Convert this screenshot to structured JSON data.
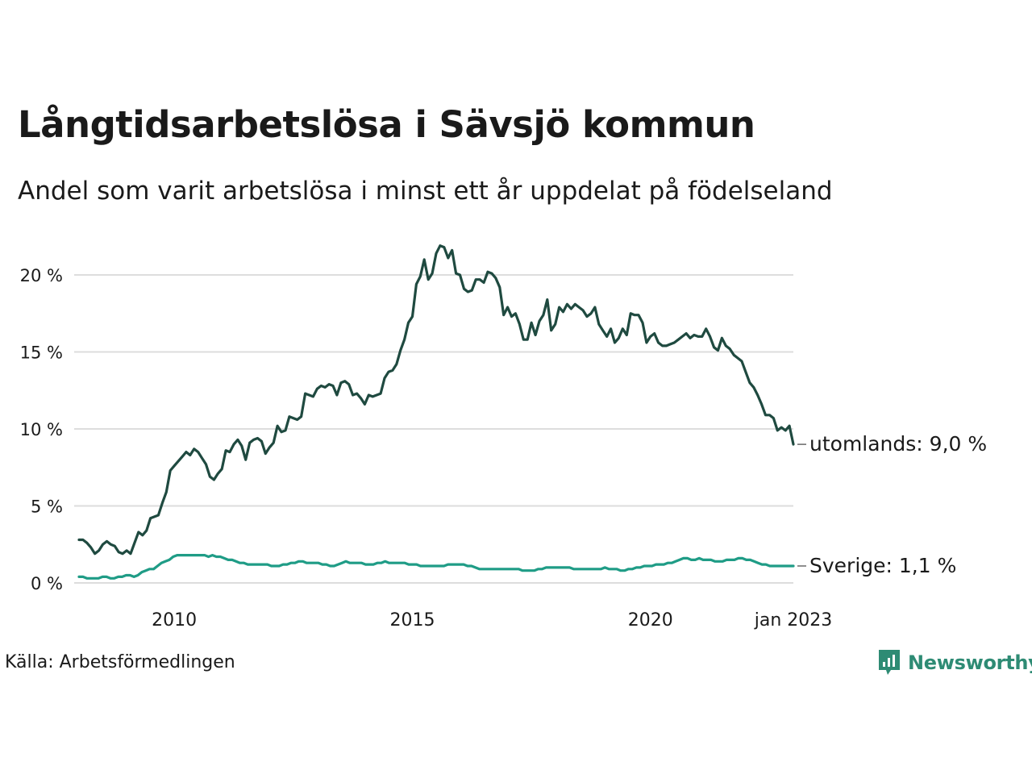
{
  "header": {
    "title": "Långtidsarbetslösa i Sävsjö kommun",
    "subtitle": "Andel som varit arbetslösa i minst ett år uppdelat på födelseland"
  },
  "footer": {
    "source": "Källa: Arbetsförmedlingen",
    "brand": "Newsworthy"
  },
  "colors": {
    "utomlands": "#1f4a40",
    "sverige": "#1f9c86",
    "grid": "#dddddd",
    "brand": "#2e8b74"
  },
  "chart_data": {
    "type": "line",
    "title": "Långtidsarbetslösa i Sävsjö kommun",
    "subtitle": "Andel som varit arbetslösa i minst ett år uppdelat på födelseland",
    "x_start": "2008-01",
    "x_end": "2023-01",
    "x_ticks": [
      "2010",
      "2015",
      "2020",
      "jan 2023"
    ],
    "x_tick_dates": [
      "2010-01",
      "2015-01",
      "2020-01",
      "2023-01"
    ],
    "y_ticks": [
      "0 %",
      "5 %",
      "10 %",
      "15 %",
      "20 %"
    ],
    "y_tick_values": [
      0,
      5,
      10,
      15,
      20
    ],
    "ylim": [
      0,
      20
    ],
    "grid": true,
    "series": [
      {
        "name": "utomlands",
        "end_label": "utomlands: 9,0 %",
        "values": [
          2.8,
          2.8,
          2.6,
          2.3,
          1.9,
          2.1,
          2.5,
          2.7,
          2.5,
          2.4,
          2.0,
          1.9,
          2.1,
          1.9,
          2.6,
          3.3,
          3.1,
          3.4,
          4.2,
          4.3,
          4.4,
          5.2,
          5.9,
          7.3,
          7.6,
          7.9,
          8.2,
          8.5,
          8.3,
          8.7,
          8.5,
          8.1,
          7.7,
          6.9,
          6.7,
          7.1,
          7.4,
          8.6,
          8.5,
          9.0,
          9.3,
          8.9,
          8.0,
          9.1,
          9.3,
          9.4,
          9.2,
          8.4,
          8.8,
          9.1,
          10.2,
          9.8,
          9.9,
          10.8,
          10.7,
          10.6,
          10.8,
          12.3,
          12.2,
          12.1,
          12.6,
          12.8,
          12.7,
          12.9,
          12.8,
          12.2,
          13.0,
          13.1,
          12.9,
          12.2,
          12.3,
          12.0,
          11.6,
          12.2,
          12.1,
          12.2,
          12.3,
          13.3,
          13.7,
          13.8,
          14.2,
          15.1,
          15.8,
          16.9,
          17.3,
          19.4,
          19.9,
          21.0,
          19.7,
          20.1,
          21.4,
          21.9,
          21.8,
          21.1,
          21.6,
          20.1,
          20.0,
          19.1,
          18.9,
          19.0,
          19.7,
          19.7,
          19.5,
          20.2,
          20.1,
          19.8,
          19.2,
          17.4,
          17.9,
          17.3,
          17.5,
          16.8,
          15.8,
          15.8,
          16.9,
          16.1,
          17.0,
          17.4,
          18.4,
          16.4,
          16.8,
          17.9,
          17.6,
          18.1,
          17.8,
          18.1,
          17.9,
          17.7,
          17.3,
          17.5,
          17.9,
          16.8,
          16.4,
          16.0,
          16.5,
          15.6,
          15.9,
          16.5,
          16.1,
          17.5,
          17.4,
          17.4,
          16.9,
          15.6,
          16.0,
          16.2,
          15.6,
          15.4,
          15.4,
          15.5,
          15.6,
          15.8,
          16.0,
          16.2,
          15.9,
          16.1,
          16.0,
          16.0,
          16.5,
          16.0,
          15.3,
          15.1,
          15.9,
          15.4,
          15.2,
          14.8,
          14.6,
          14.4,
          13.7,
          13.0,
          12.7,
          12.2,
          11.6,
          10.9,
          10.9,
          10.7,
          9.9,
          10.1,
          9.9,
          10.2,
          9.0
        ]
      },
      {
        "name": "Sverige",
        "end_label": "Sverige: 1,1 %",
        "values": [
          0.4,
          0.4,
          0.3,
          0.3,
          0.3,
          0.3,
          0.4,
          0.4,
          0.3,
          0.3,
          0.4,
          0.4,
          0.5,
          0.5,
          0.4,
          0.5,
          0.7,
          0.8,
          0.9,
          0.9,
          1.1,
          1.3,
          1.4,
          1.5,
          1.7,
          1.8,
          1.8,
          1.8,
          1.8,
          1.8,
          1.8,
          1.8,
          1.8,
          1.7,
          1.8,
          1.7,
          1.7,
          1.6,
          1.5,
          1.5,
          1.4,
          1.3,
          1.3,
          1.2,
          1.2,
          1.2,
          1.2,
          1.2,
          1.2,
          1.1,
          1.1,
          1.1,
          1.2,
          1.2,
          1.3,
          1.3,
          1.4,
          1.4,
          1.3,
          1.3,
          1.3,
          1.3,
          1.2,
          1.2,
          1.1,
          1.1,
          1.2,
          1.3,
          1.4,
          1.3,
          1.3,
          1.3,
          1.3,
          1.2,
          1.2,
          1.2,
          1.3,
          1.3,
          1.4,
          1.3,
          1.3,
          1.3,
          1.3,
          1.3,
          1.2,
          1.2,
          1.2,
          1.1,
          1.1,
          1.1,
          1.1,
          1.1,
          1.1,
          1.1,
          1.2,
          1.2,
          1.2,
          1.2,
          1.2,
          1.1,
          1.1,
          1.0,
          0.9,
          0.9,
          0.9,
          0.9,
          0.9,
          0.9,
          0.9,
          0.9,
          0.9,
          0.9,
          0.9,
          0.8,
          0.8,
          0.8,
          0.8,
          0.9,
          0.9,
          1.0,
          1.0,
          1.0,
          1.0,
          1.0,
          1.0,
          1.0,
          0.9,
          0.9,
          0.9,
          0.9,
          0.9,
          0.9,
          0.9,
          0.9,
          1.0,
          0.9,
          0.9,
          0.9,
          0.8,
          0.8,
          0.9,
          0.9,
          1.0,
          1.0,
          1.1,
          1.1,
          1.1,
          1.2,
          1.2,
          1.2,
          1.3,
          1.3,
          1.4,
          1.5,
          1.6,
          1.6,
          1.5,
          1.5,
          1.6,
          1.5,
          1.5,
          1.5,
          1.4,
          1.4,
          1.4,
          1.5,
          1.5,
          1.5,
          1.6,
          1.6,
          1.5,
          1.5,
          1.4,
          1.3,
          1.2,
          1.2,
          1.1,
          1.1,
          1.1,
          1.1,
          1.1,
          1.1,
          1.1
        ]
      }
    ]
  }
}
